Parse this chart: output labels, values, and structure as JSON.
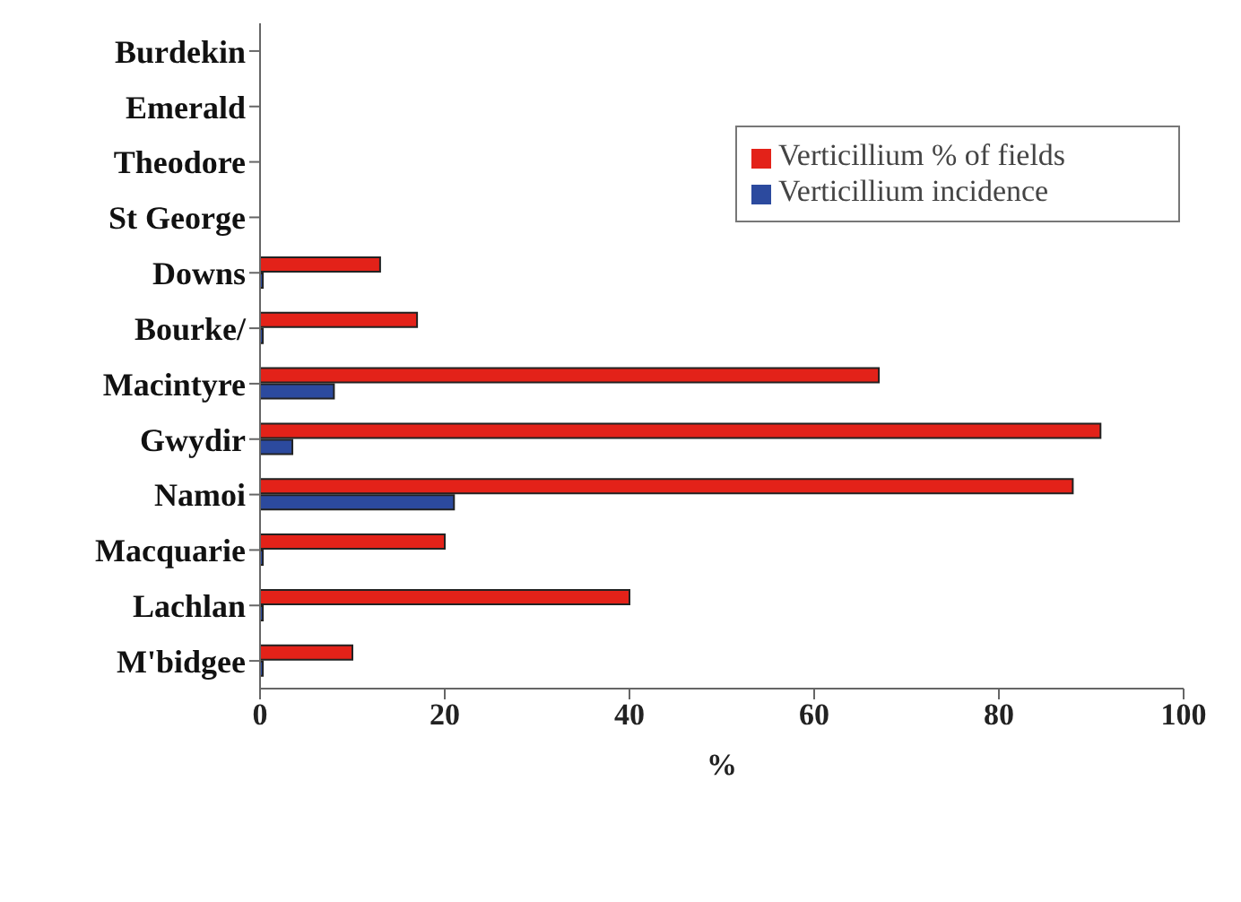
{
  "chart_data": {
    "type": "bar",
    "orientation": "horizontal",
    "xlabel": "%",
    "categories": [
      "Burdekin",
      "Emerald",
      "Theodore",
      "St George",
      "Downs",
      "Bourke/",
      "Macintyre",
      "Gwydir",
      "Namoi",
      "Macquarie",
      "Lachlan",
      "M'bidgee"
    ],
    "series": [
      {
        "name": "Verticillium % of fields",
        "color": "#e32219",
        "values": [
          null,
          null,
          null,
          null,
          13,
          17,
          67,
          91,
          88,
          20,
          40,
          10
        ]
      },
      {
        "name": "Verticillium incidence",
        "color": "#2c4a9e",
        "values": [
          null,
          null,
          null,
          null,
          0.3,
          0.3,
          8,
          3.5,
          21,
          0.3,
          0.3,
          0.3
        ]
      }
    ],
    "xlim": [
      0,
      100
    ],
    "xticks": [
      0,
      20,
      40,
      60,
      80,
      100
    ],
    "grid": false,
    "legend": "top right"
  }
}
